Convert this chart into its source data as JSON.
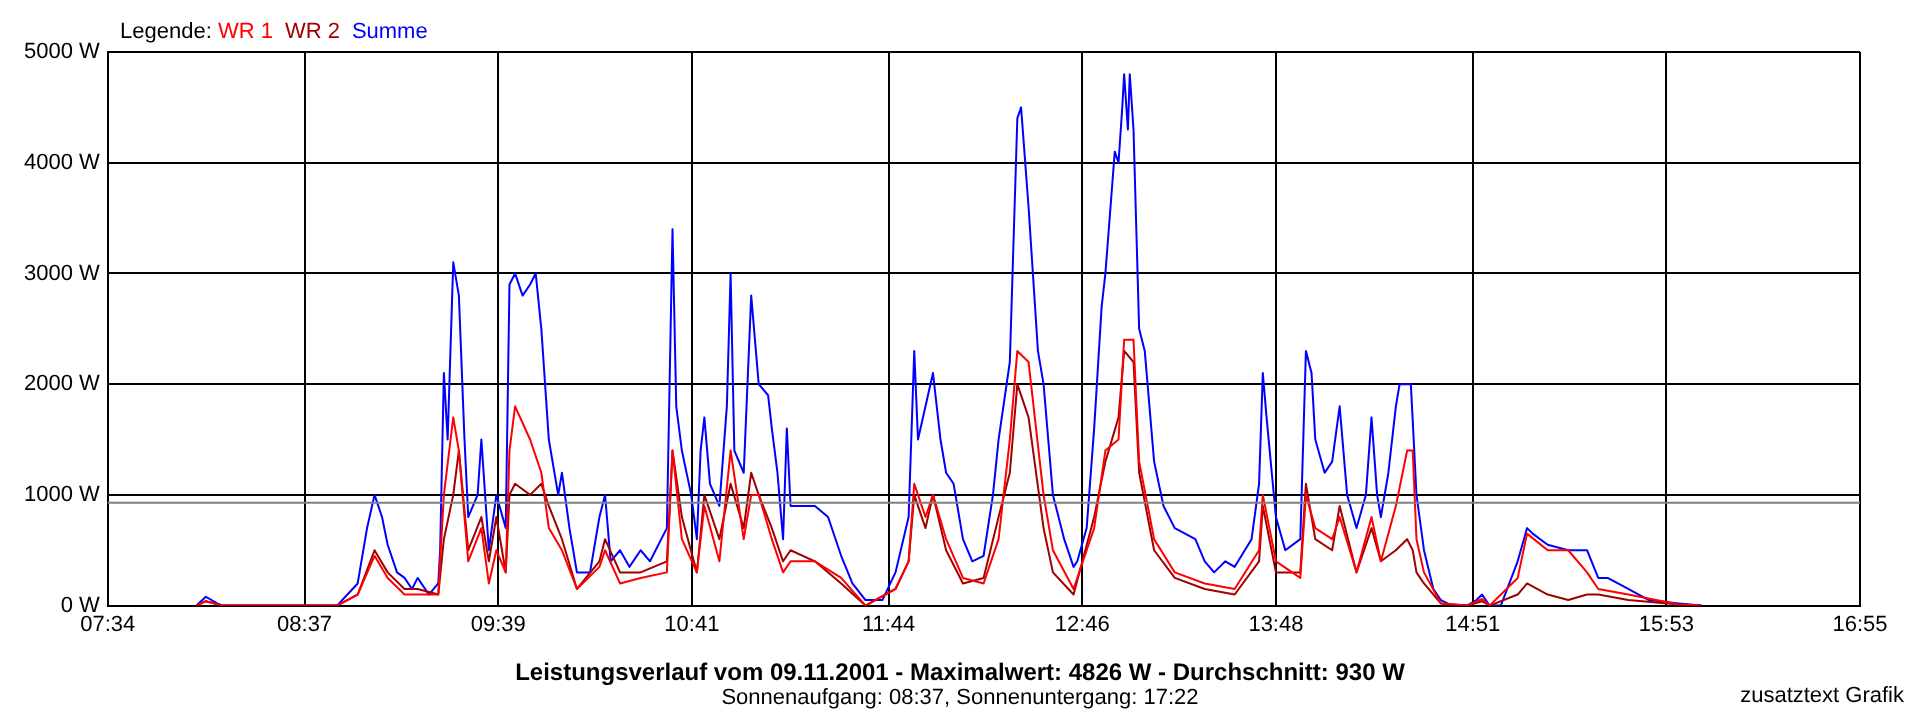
{
  "chart_data": {
    "type": "line",
    "title": "Leistungsverlauf vom 09.11.2001 - Maximalwert: 4826 W - Durchschnitt: 930 W",
    "subtitle": "Sonnenaufgang: 08:37, Sonnenuntergang: 17:22",
    "annotations": [
      "zusatztext Grafik"
    ],
    "legend_title": "Legende:",
    "legend": "top left",
    "grid": true,
    "marker": "none",
    "line_style": "solid",
    "xlim": [
      7.5667,
      16.9167
    ],
    "xticks": [
      {
        "value": 7.5667,
        "label": "07:34"
      },
      {
        "value": 8.6167,
        "label": "08:37"
      },
      {
        "value": 9.65,
        "label": "09:39"
      },
      {
        "value": 10.6833,
        "label": "10:41"
      },
      {
        "value": 11.7333,
        "label": "11:44"
      },
      {
        "value": 12.7667,
        "label": "12:46"
      },
      {
        "value": 13.8,
        "label": "13:48"
      },
      {
        "value": 14.85,
        "label": "14:51"
      },
      {
        "value": 15.8833,
        "label": "15:53"
      },
      {
        "value": 16.9167,
        "label": "16:55"
      }
    ],
    "ylim": [
      0,
      5000
    ],
    "yticks": [
      {
        "value": 0,
        "label": "0 W"
      },
      {
        "value": 1000,
        "label": "1000 W"
      },
      {
        "value": 2000,
        "label": "2000 W"
      },
      {
        "value": 3000,
        "label": "3000 W"
      },
      {
        "value": 4000,
        "label": "4000 W"
      },
      {
        "value": 5000,
        "label": "5000 W"
      }
    ],
    "ref_lines": [
      {
        "axis": "y",
        "value": 930,
        "color": "#808080"
      }
    ],
    "series": [
      {
        "name": "WR 1",
        "color": "#ff0000",
        "x": [
          8.04,
          8.09,
          8.18,
          8.79,
          8.9,
          8.99,
          9.06,
          9.15,
          9.22,
          9.33,
          9.36,
          9.41,
          9.44,
          9.49,
          9.56,
          9.6,
          9.64,
          9.69,
          9.71,
          9.74,
          9.82,
          9.88,
          9.92,
          9.99,
          10.07,
          10.19,
          10.22,
          10.3,
          10.41,
          10.55,
          10.58,
          10.63,
          10.71,
          10.75,
          10.83,
          10.89,
          10.96,
          11.0,
          11.04,
          11.11,
          11.17,
          11.21,
          11.34,
          11.48,
          11.61,
          11.77,
          11.84,
          11.87,
          11.93,
          11.97,
          12.04,
          12.13,
          12.24,
          12.32,
          12.38,
          12.42,
          12.48,
          12.56,
          12.61,
          12.72,
          12.83,
          12.89,
          12.96,
          12.99,
          13.04,
          13.07,
          13.15,
          13.26,
          13.42,
          13.58,
          13.71,
          13.73,
          13.8,
          13.93,
          13.96,
          14.01,
          14.1,
          14.14,
          14.23,
          14.31,
          14.36,
          14.44,
          14.5,
          14.53,
          14.55,
          14.59,
          14.68,
          14.82,
          14.9,
          14.94,
          15.09,
          15.14,
          15.25,
          15.36,
          15.46,
          15.52,
          15.68,
          15.95,
          16.07
        ],
        "values": [
          0,
          40,
          0,
          0,
          100,
          450,
          250,
          100,
          100,
          100,
          1000,
          1700,
          1400,
          400,
          700,
          200,
          500,
          300,
          1400,
          1800,
          1500,
          1200,
          700,
          500,
          150,
          350,
          500,
          200,
          250,
          300,
          1400,
          600,
          300,
          900,
          400,
          1400,
          600,
          1000,
          1000,
          600,
          300,
          400,
          400,
          250,
          0,
          150,
          400,
          1100,
          800,
          1000,
          600,
          250,
          200,
          600,
          1500,
          2300,
          2200,
          1000,
          500,
          150,
          700,
          1400,
          1500,
          2400,
          2400,
          1300,
          600,
          300,
          200,
          150,
          500,
          1000,
          400,
          250,
          1000,
          700,
          600,
          800,
          300,
          800,
          400,
          900,
          1400,
          1400,
          600,
          300,
          20,
          0,
          60,
          0,
          250,
          650,
          500,
          500,
          300,
          150,
          100,
          10,
          0
        ]
      },
      {
        "name": "WR 2",
        "color": "#a00000",
        "x": [
          8.04,
          8.09,
          8.18,
          8.79,
          8.9,
          8.99,
          9.06,
          9.15,
          9.22,
          9.33,
          9.36,
          9.41,
          9.44,
          9.49,
          9.56,
          9.6,
          9.64,
          9.69,
          9.71,
          9.74,
          9.82,
          9.88,
          9.92,
          9.99,
          10.07,
          10.19,
          10.22,
          10.3,
          10.41,
          10.55,
          10.58,
          10.63,
          10.71,
          10.75,
          10.83,
          10.89,
          10.96,
          11.0,
          11.04,
          11.11,
          11.17,
          11.21,
          11.34,
          11.48,
          11.61,
          11.77,
          11.84,
          11.87,
          11.93,
          11.97,
          12.04,
          12.13,
          12.24,
          12.32,
          12.38,
          12.42,
          12.48,
          12.56,
          12.61,
          12.72,
          12.83,
          12.89,
          12.96,
          12.99,
          13.04,
          13.07,
          13.15,
          13.26,
          13.42,
          13.58,
          13.71,
          13.73,
          13.8,
          13.93,
          13.96,
          14.01,
          14.1,
          14.14,
          14.23,
          14.31,
          14.36,
          14.44,
          14.5,
          14.53,
          14.55,
          14.59,
          14.68,
          14.82,
          14.9,
          14.94,
          15.09,
          15.14,
          15.25,
          15.36,
          15.46,
          15.52,
          15.68,
          15.95,
          16.07
        ],
        "values": [
          0,
          40,
          0,
          0,
          100,
          500,
          300,
          150,
          150,
          100,
          600,
          1000,
          1400,
          500,
          800,
          400,
          800,
          300,
          1000,
          1100,
          1000,
          1100,
          900,
          600,
          150,
          400,
          600,
          300,
          300,
          400,
          1400,
          800,
          300,
          1000,
          600,
          1100,
          700,
          1200,
          1000,
          700,
          400,
          500,
          400,
          200,
          0,
          150,
          400,
          1000,
          700,
          1000,
          500,
          200,
          250,
          800,
          1200,
          2000,
          1700,
          700,
          300,
          100,
          800,
          1300,
          1700,
          2300,
          2200,
          1200,
          500,
          250,
          150,
          100,
          400,
          900,
          300,
          300,
          1100,
          600,
          500,
          900,
          300,
          700,
          400,
          500,
          600,
          500,
          300,
          200,
          20,
          0,
          40,
          0,
          100,
          200,
          100,
          50,
          100,
          100,
          50,
          10,
          0
        ]
      },
      {
        "name": "Summe",
        "color": "#0000ff",
        "x": [
          8.04,
          8.09,
          8.15,
          8.18,
          8.79,
          8.9,
          8.95,
          8.99,
          9.03,
          9.06,
          9.11,
          9.15,
          9.19,
          9.22,
          9.28,
          9.33,
          9.34,
          9.36,
          9.38,
          9.41,
          9.44,
          9.47,
          9.49,
          9.54,
          9.56,
          9.6,
          9.64,
          9.69,
          9.71,
          9.74,
          9.78,
          9.82,
          9.85,
          9.88,
          9.92,
          9.97,
          9.99,
          10.03,
          10.07,
          10.14,
          10.19,
          10.22,
          10.25,
          10.3,
          10.35,
          10.41,
          10.46,
          10.55,
          10.58,
          10.6,
          10.63,
          10.68,
          10.71,
          10.73,
          10.75,
          10.78,
          10.83,
          10.87,
          10.89,
          10.91,
          10.96,
          11.0,
          11.04,
          11.09,
          11.11,
          11.14,
          11.17,
          11.19,
          11.21,
          11.28,
          11.34,
          11.41,
          11.48,
          11.54,
          11.61,
          11.7,
          11.77,
          11.84,
          11.87,
          11.89,
          11.93,
          11.97,
          12.01,
          12.04,
          12.08,
          12.13,
          12.18,
          12.24,
          12.29,
          12.32,
          12.38,
          12.42,
          12.44,
          12.48,
          12.53,
          12.56,
          12.61,
          12.67,
          12.72,
          12.74,
          12.79,
          12.83,
          12.87,
          12.89,
          12.94,
          12.96,
          12.98,
          12.99,
          13.01,
          13.02,
          13.04,
          13.07,
          13.1,
          13.15,
          13.2,
          13.26,
          13.37,
          13.42,
          13.47,
          13.53,
          13.58,
          13.67,
          13.71,
          13.73,
          13.75,
          13.8,
          13.85,
          13.93,
          13.96,
          13.99,
          14.01,
          14.06,
          14.1,
          14.14,
          14.18,
          14.23,
          14.28,
          14.31,
          14.34,
          14.36,
          14.4,
          14.44,
          14.46,
          14.5,
          14.52,
          14.55,
          14.59,
          14.64,
          14.68,
          14.74,
          14.82,
          14.87,
          14.9,
          14.94,
          15.0,
          15.09,
          15.14,
          15.17,
          15.25,
          15.36,
          15.46,
          15.52,
          15.57,
          15.68,
          15.79,
          15.95,
          16.07
        ],
        "values": [
          0,
          80,
          20,
          0,
          0,
          200,
          700,
          1000,
          800,
          550,
          300,
          250,
          150,
          250,
          100,
          200,
          500,
          2100,
          1500,
          3100,
          2800,
          1500,
          800,
          1000,
          1500,
          500,
          1000,
          700,
          2900,
          3000,
          2800,
          2900,
          3000,
          2500,
          1500,
          1000,
          1200,
          700,
          300,
          300,
          800,
          1000,
          400,
          500,
          350,
          500,
          400,
          700,
          3400,
          1800,
          1400,
          1000,
          600,
          1400,
          1700,
          1100,
          900,
          1800,
          3000,
          1400,
          1200,
          2800,
          2000,
          1900,
          1600,
          1200,
          600,
          1600,
          900,
          900,
          900,
          800,
          450,
          200,
          50,
          50,
          300,
          800,
          2300,
          1500,
          1800,
          2100,
          1500,
          1200,
          1100,
          600,
          400,
          450,
          1000,
          1500,
          2200,
          4400,
          4500,
          3600,
          2300,
          2000,
          1000,
          600,
          350,
          400,
          700,
          1600,
          2700,
          3000,
          4100,
          4000,
          4500,
          4800,
          4300,
          4800,
          4300,
          2500,
          2300,
          1300,
          900,
          700,
          600,
          400,
          300,
          400,
          350,
          600,
          1100,
          2100,
          1700,
          800,
          500,
          600,
          2300,
          2100,
          1500,
          1200,
          1300,
          1800,
          1000,
          700,
          1000,
          1700,
          1000,
          800,
          1200,
          1800,
          2000,
          2000,
          2000,
          1000,
          500,
          150,
          50,
          0,
          0,
          50,
          100,
          0,
          0,
          400,
          700,
          650,
          550,
          500,
          500,
          250,
          250,
          150,
          50,
          20,
          0
        ]
      }
    ]
  }
}
